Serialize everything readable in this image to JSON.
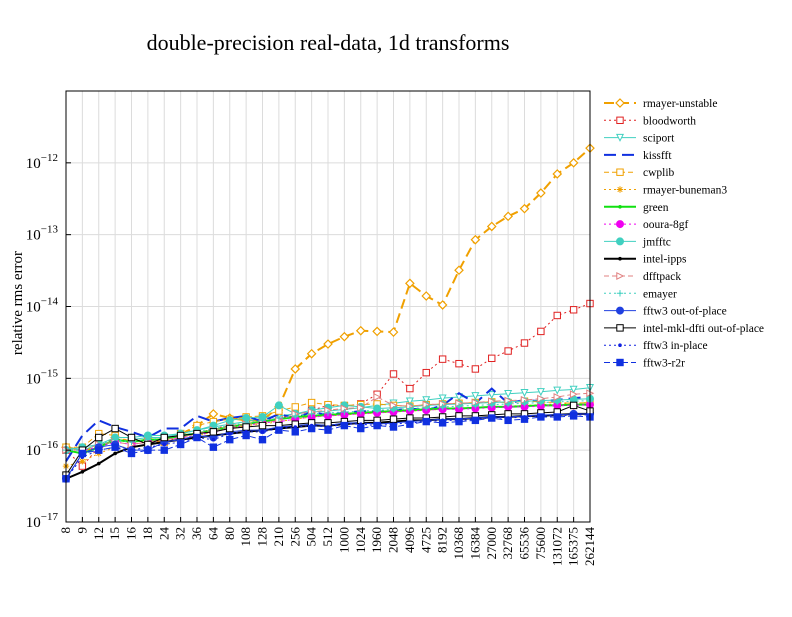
{
  "chart_data": {
    "type": "line",
    "title": "double-precision real-data, 1d transforms",
    "xlabel": "",
    "ylabel": "relative rms error",
    "yscale": "log",
    "ylim": [
      1e-17,
      1e-11
    ],
    "grid": true,
    "legend_position": "right",
    "y_tick_labels": [
      "10^-17",
      "10^-16",
      "10^-15",
      "10^-14",
      "10^-13",
      "10^-12"
    ],
    "categories": [
      "8",
      "9",
      "12",
      "15",
      "16",
      "18",
      "24",
      "32",
      "36",
      "64",
      "80",
      "108",
      "128",
      "210",
      "256",
      "504",
      "512",
      "1000",
      "1024",
      "1960",
      "2048",
      "4096",
      "4725",
      "8192",
      "10368",
      "16384",
      "27000",
      "32768",
      "65536",
      "75600",
      "131072",
      "165375",
      "262144"
    ],
    "series": [
      {
        "name": "rmayer-unstable",
        "color": "#f0a000",
        "dash": "10,5",
        "marker": "diamond-open",
        "width": 2,
        "values": [
          1.1e-16,
          1e-16,
          1.1e-16,
          1.5e-16,
          1.3e-16,
          1.4e-16,
          1.4e-16,
          1.6e-16,
          2.2e-16,
          3.2e-16,
          2.8e-16,
          2.6e-16,
          2.6e-16,
          4e-16,
          1.35e-15,
          2.2e-15,
          3e-15,
          3.8e-15,
          4.6e-15,
          4.5e-15,
          4.4e-15,
          2.1e-14,
          1.4e-14,
          1.05e-14,
          3.2e-14,
          8.5e-14,
          1.3e-13,
          1.8e-13,
          2.3e-13,
          3.8e-13,
          7e-13,
          1e-12,
          1.6e-12
        ]
      },
      {
        "name": "bloodworth",
        "color": "#e02020",
        "dash": "2,3",
        "marker": "square-open",
        "width": 1,
        "values": [
          1e-16,
          6e-17,
          1.1e-16,
          1.5e-16,
          1.2e-16,
          1.3e-16,
          1.3e-16,
          1.5e-16,
          1.7e-16,
          2e-16,
          2.2e-16,
          2.3e-16,
          2.5e-16,
          2.8e-16,
          3.1e-16,
          3.6e-16,
          4.2e-16,
          4.1e-16,
          4.4e-16,
          6e-16,
          1.15e-15,
          7.2e-16,
          1.2e-15,
          1.85e-15,
          1.6e-15,
          1.35e-15,
          1.9e-15,
          2.4e-15,
          3.1e-15,
          4.5e-15,
          7.5e-15,
          9e-15,
          1.1e-14
        ]
      },
      {
        "name": "sciport",
        "color": "#40d0c0",
        "dash": "none",
        "marker": "tri-down-open",
        "width": 1,
        "values": [
          1.1e-16,
          1e-16,
          1.2e-16,
          1.3e-16,
          1.4e-16,
          1.5e-16,
          1.5e-16,
          1.7e-16,
          1.9e-16,
          2.1e-16,
          2.3e-16,
          2.5e-16,
          2.8e-16,
          3e-16,
          3.2e-16,
          3.4e-16,
          3.5e-16,
          3.7e-16,
          3.9e-16,
          4.2e-16,
          4.5e-16,
          4.8e-16,
          5e-16,
          5.3e-16,
          5.5e-16,
          5.7e-16,
          5.9e-16,
          6.1e-16,
          6.3e-16,
          6.5e-16,
          6.8e-16,
          7e-16,
          7.4e-16
        ]
      },
      {
        "name": "kissfft",
        "color": "#1030e0",
        "dash": "12,6",
        "marker": "none",
        "width": 2,
        "values": [
          7e-17,
          1.6e-16,
          2.6e-16,
          2.1e-16,
          1.8e-16,
          1.5e-16,
          2e-16,
          2e-16,
          3e-16,
          2.5e-16,
          2.8e-16,
          3e-16,
          2.5e-16,
          3.2e-16,
          2.8e-16,
          3.4e-16,
          3.1e-16,
          3.3e-16,
          3.5e-16,
          3.4e-16,
          3.6e-16,
          3.8e-16,
          3.6e-16,
          4.2e-16,
          6.2e-16,
          4.5e-16,
          7.2e-16,
          4.5e-16,
          5e-16,
          4.8e-16,
          5e-16,
          5.3e-16,
          5.5e-16
        ]
      },
      {
        "name": "cwplib",
        "color": "#f0a000",
        "dash": "5,3",
        "marker": "square-open",
        "width": 1,
        "values": [
          1.1e-16,
          1.1e-16,
          1.7e-16,
          1.6e-16,
          1.3e-16,
          1.4e-16,
          1.3e-16,
          1.7e-16,
          2.2e-16,
          2.5e-16,
          2.7e-16,
          2.9e-16,
          3e-16,
          3.5e-16,
          4e-16,
          4.6e-16,
          4.3e-16,
          4.2e-16,
          4.3e-16,
          4.4e-16,
          4.2e-16,
          4.1e-16,
          4.3e-16,
          4.4e-16,
          4.5e-16,
          4.6e-16,
          4.7e-16,
          4.6e-16,
          4.8e-16,
          4.7e-16,
          4.6e-16,
          4.5e-16,
          4.6e-16
        ]
      },
      {
        "name": "rmayer-buneman3",
        "color": "#f0a000",
        "dash": "2,3",
        "marker": "star",
        "width": 1,
        "values": [
          6e-17,
          7e-17,
          9e-17,
          1.1e-16,
          1.1e-16,
          1.2e-16,
          1.3e-16,
          1.4e-16,
          1.6e-16,
          1.8e-16,
          2e-16,
          2.2e-16,
          2.3e-16,
          2.5e-16,
          2.7e-16,
          2.9e-16,
          3e-16,
          3.1e-16,
          3.2e-16,
          3.3e-16,
          3.4e-16,
          3.5e-16,
          3.6e-16,
          3.7e-16,
          3.8e-16,
          3.9e-16,
          4e-16,
          4.1e-16,
          4.2e-16,
          4.3e-16,
          4.4e-16,
          4.5e-16,
          4.6e-16
        ]
      },
      {
        "name": "green",
        "color": "#10e010",
        "dash": "none",
        "marker": "dot",
        "width": 2,
        "values": [
          1e-16,
          9e-17,
          1.1e-16,
          1.4e-16,
          1.3e-16,
          1.4e-16,
          1.4e-16,
          1.6e-16,
          1.7e-16,
          1.9e-16,
          2.1e-16,
          2.3e-16,
          2.5e-16,
          2.7e-16,
          2.9e-16,
          3e-16,
          3.1e-16,
          3.2e-16,
          3.3e-16,
          3.4e-16,
          3.5e-16,
          3.6e-16,
          3.7e-16,
          3.8e-16,
          3.8e-16,
          3.9e-16,
          4e-16,
          4e-16,
          4.1e-16,
          4.2e-16,
          4.2e-16,
          4.3e-16,
          4.3e-16
        ]
      },
      {
        "name": "ooura-8gf",
        "color": "#f000f0",
        "dash": "2,3",
        "marker": "circle-filled",
        "width": 1,
        "values": [
          1e-16,
          1e-16,
          1.1e-16,
          1.3e-16,
          1.2e-16,
          1.3e-16,
          1.4e-16,
          1.5e-16,
          1.6e-16,
          1.8e-16,
          2e-16,
          2.2e-16,
          2.4e-16,
          2.5e-16,
          2.7e-16,
          2.9e-16,
          3e-16,
          3.1e-16,
          3.2e-16,
          3.3e-16,
          3.4e-16,
          3.5e-16,
          3.6e-16,
          3.7e-16,
          3.7e-16,
          3.8e-16,
          3.9e-16,
          4e-16,
          4e-16,
          4.1e-16,
          4.2e-16,
          4.2e-16,
          4.3e-16
        ]
      },
      {
        "name": "jmfftc",
        "color": "#40d0c0",
        "dash": "none",
        "marker": "circle-filled",
        "width": 1,
        "values": [
          1e-16,
          1.1e-16,
          1.2e-16,
          1.5e-16,
          1.5e-16,
          1.6e-16,
          1.6e-16,
          1.7e-16,
          1.9e-16,
          2.2e-16,
          2.6e-16,
          2.8e-16,
          2.9e-16,
          4.2e-16,
          3.2e-16,
          3.6e-16,
          3.9e-16,
          4.2e-16,
          4e-16,
          3.8e-16,
          3.9e-16,
          4e-16,
          4.2e-16,
          4.3e-16,
          4.4e-16,
          4.5e-16,
          4.6e-16,
          4.7e-16,
          4.8e-16,
          4.9e-16,
          5e-16,
          5.1e-16,
          5.2e-16
        ]
      },
      {
        "name": "intel-ipps",
        "color": "#000000",
        "dash": "none",
        "marker": "dot",
        "width": 2,
        "values": [
          4e-17,
          5e-17,
          6.5e-17,
          9e-17,
          1.1e-16,
          1.2e-16,
          1.3e-16,
          1.4e-16,
          1.5e-16,
          1.6e-16,
          1.7e-16,
          1.8e-16,
          1.9e-16,
          2e-16,
          2.1e-16,
          2.2e-16,
          2.2e-16,
          2.3e-16,
          2.4e-16,
          2.4e-16,
          2.5e-16,
          2.6e-16,
          2.6e-16,
          2.7e-16,
          2.7e-16,
          2.8e-16,
          2.9e-16,
          2.9e-16,
          3e-16,
          3e-16,
          3.1e-16,
          3.2e-16,
          3.2e-16
        ]
      },
      {
        "name": "dfftpack",
        "color": "#e08080",
        "dash": "5,3",
        "marker": "tri-right-open",
        "width": 1,
        "values": [
          1e-16,
          1e-16,
          1.2e-16,
          1.3e-16,
          1.2e-16,
          1.3e-16,
          1.4e-16,
          1.5e-16,
          1.7e-16,
          1.9e-16,
          2.1e-16,
          2.3e-16,
          2.4e-16,
          2.6e-16,
          3.2e-16,
          3.4e-16,
          3.6e-16,
          3.8e-16,
          3.9e-16,
          5.5e-16,
          4.2e-16,
          4.1e-16,
          4.3e-16,
          4.4e-16,
          4.5e-16,
          4.6e-16,
          4.8e-16,
          4.9e-16,
          5e-16,
          5.2e-16,
          5.5e-16,
          6e-16,
          6.2e-16
        ]
      },
      {
        "name": "emayer",
        "color": "#40d0c0",
        "dash": "2,3",
        "marker": "plus",
        "width": 1,
        "values": [
          1e-16,
          1e-16,
          1.2e-16,
          1.4e-16,
          1.3e-16,
          1.4e-16,
          1.5e-16,
          1.6e-16,
          1.8e-16,
          2e-16,
          2.2e-16,
          2.4e-16,
          2.6e-16,
          2.8e-16,
          3e-16,
          3.2e-16,
          3.3e-16,
          3.4e-16,
          3.5e-16,
          3.6e-16,
          3.7e-16,
          3.8e-16,
          3.9e-16,
          4e-16,
          4.1e-16,
          4.2e-16,
          4.3e-16,
          4.4e-16,
          4.5e-16,
          4.6e-16,
          4.7e-16,
          4.8e-16,
          4.9e-16
        ]
      },
      {
        "name": "fftw3 out-of-place",
        "color": "#2040e0",
        "dash": "none",
        "marker": "circle-filled",
        "width": 1,
        "values": [
          4e-17,
          9e-17,
          1.1e-16,
          1.2e-16,
          1e-16,
          1e-16,
          1.3e-16,
          1.4e-16,
          1.6e-16,
          1.5e-16,
          1.8e-16,
          1.9e-16,
          1.9e-16,
          2.1e-16,
          2.2e-16,
          2.3e-16,
          2.2e-16,
          2.4e-16,
          2.4e-16,
          2.3e-16,
          2.4e-16,
          2.5e-16,
          2.6e-16,
          2.7e-16,
          2.7e-16,
          2.8e-16,
          2.9e-16,
          2.9e-16,
          3e-16,
          3.1e-16,
          3.1e-16,
          3.2e-16,
          3.2e-16
        ]
      },
      {
        "name": "intel-mkl-dfti out-of-place",
        "color": "#000000",
        "dash": "none",
        "marker": "square-open",
        "width": 1,
        "values": [
          4.5e-17,
          1e-16,
          1.5e-16,
          2e-16,
          1.5e-16,
          1.2e-16,
          1.5e-16,
          1.6e-16,
          1.7e-16,
          1.8e-16,
          2e-16,
          2.1e-16,
          2.2e-16,
          2.2e-16,
          2.3e-16,
          2.4e-16,
          2.4e-16,
          2.5e-16,
          2.6e-16,
          2.6e-16,
          2.7e-16,
          2.8e-16,
          2.8e-16,
          2.9e-16,
          3e-16,
          3e-16,
          3.1e-16,
          3.2e-16,
          3.2e-16,
          3.3e-16,
          3.4e-16,
          4.2e-16,
          3.5e-16
        ]
      },
      {
        "name": "fftw3 in-place",
        "color": "#1020e0",
        "dash": "2,3",
        "marker": "dot",
        "width": 1,
        "values": [
          4e-17,
          8e-17,
          1e-16,
          1.1e-16,
          1e-16,
          1.1e-16,
          1.2e-16,
          1.3e-16,
          1.5e-16,
          1.4e-16,
          1.7e-16,
          1.8e-16,
          1.8e-16,
          2e-16,
          2.1e-16,
          2.2e-16,
          2.1e-16,
          2.3e-16,
          2.3e-16,
          2.2e-16,
          2.3e-16,
          2.4e-16,
          2.5e-16,
          2.6e-16,
          2.6e-16,
          2.7e-16,
          2.8e-16,
          2.8e-16,
          2.9e-16,
          3e-16,
          3e-16,
          3.1e-16,
          3.1e-16
        ]
      },
      {
        "name": "fftw3-r2r",
        "color": "#1030e0",
        "dash": "6,3",
        "marker": "square-filled",
        "width": 1,
        "values": [
          4e-17,
          9e-17,
          1e-16,
          1.1e-16,
          9e-17,
          1e-16,
          1e-16,
          1.2e-16,
          1.5e-16,
          1.1e-16,
          1.4e-16,
          1.6e-16,
          1.4e-16,
          1.9e-16,
          1.8e-16,
          2e-16,
          1.9e-16,
          2.2e-16,
          2e-16,
          2.2e-16,
          2.1e-16,
          2.3e-16,
          2.5e-16,
          2.4e-16,
          2.5e-16,
          2.6e-16,
          2.8e-16,
          2.6e-16,
          2.7e-16,
          2.9e-16,
          2.9e-16,
          3e-16,
          2.9e-16
        ]
      }
    ]
  }
}
